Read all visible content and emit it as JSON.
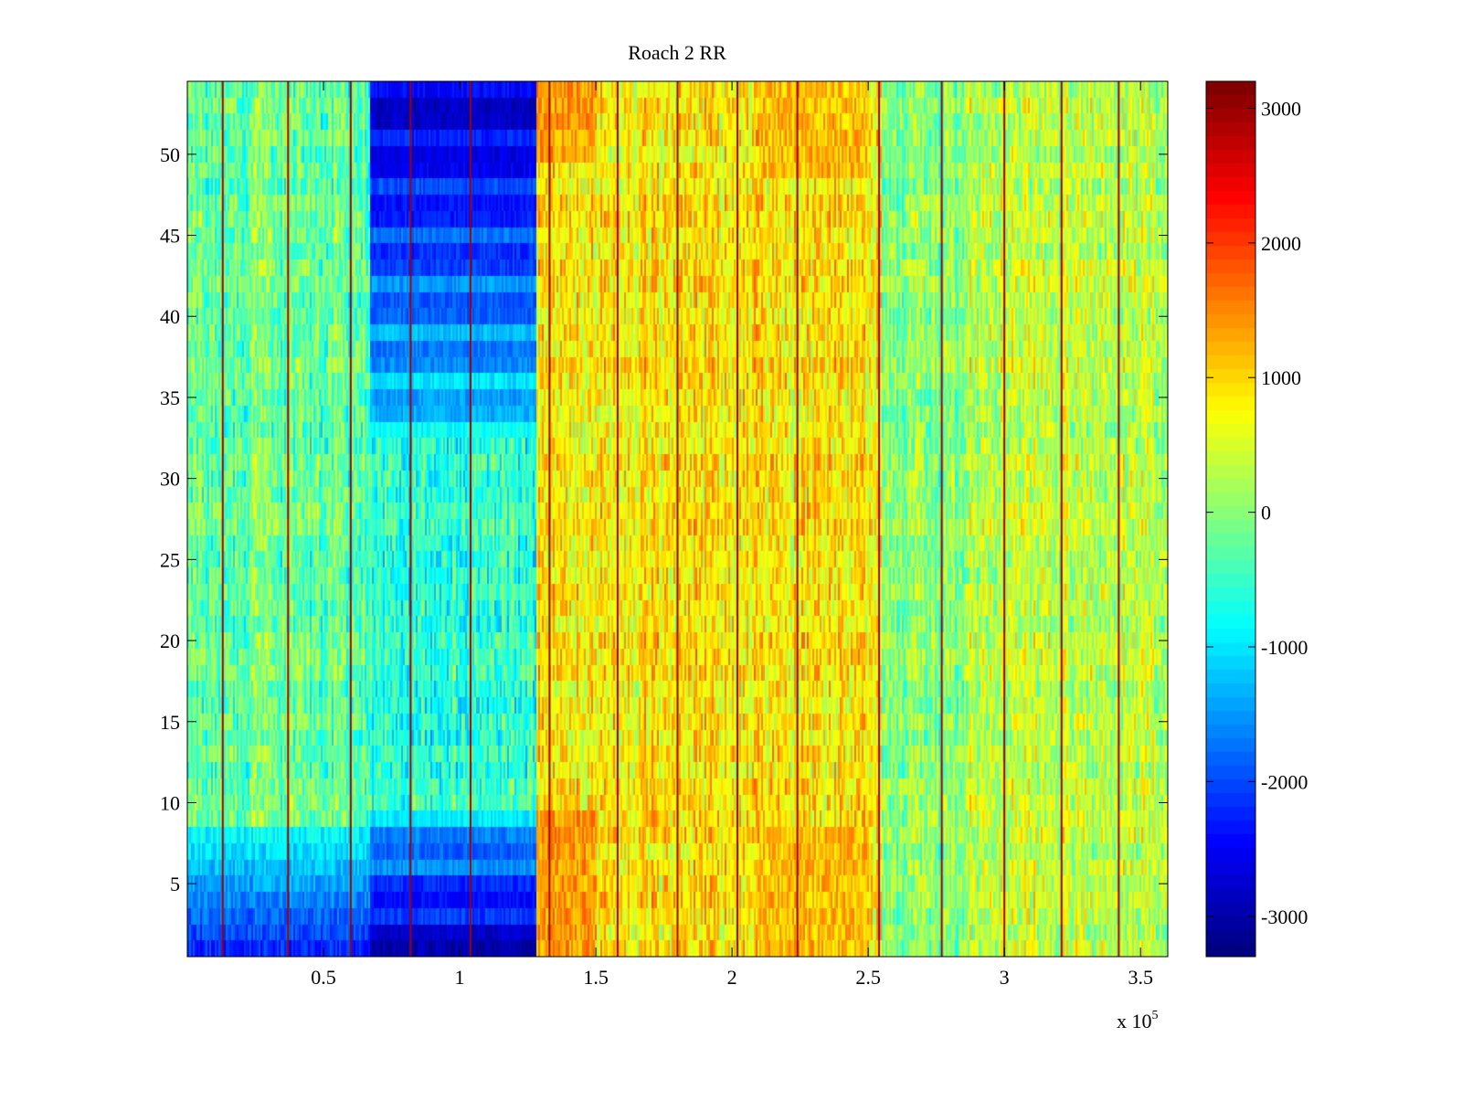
{
  "chart_data": {
    "type": "heatmap",
    "title": "Roach 2 RR",
    "xlabel": "",
    "ylabel": "",
    "x_exponent_label": {
      "base": "x 10",
      "exponent": "5"
    },
    "xlim": [
      0,
      3.6
    ],
    "ylim": [
      0.5,
      54.5
    ],
    "clim": [
      -3300,
      3200
    ],
    "colormap": "jet",
    "x_ticks": [
      {
        "value": 0.5,
        "label": "0.5"
      },
      {
        "value": 1.0,
        "label": "1"
      },
      {
        "value": 1.5,
        "label": "1.5"
      },
      {
        "value": 2.0,
        "label": "2"
      },
      {
        "value": 2.5,
        "label": "2.5"
      },
      {
        "value": 3.0,
        "label": "3"
      },
      {
        "value": 3.5,
        "label": "3.5"
      }
    ],
    "y_ticks": [
      {
        "value": 5,
        "label": "5"
      },
      {
        "value": 10,
        "label": "10"
      },
      {
        "value": 15,
        "label": "15"
      },
      {
        "value": 20,
        "label": "20"
      },
      {
        "value": 25,
        "label": "25"
      },
      {
        "value": 30,
        "label": "30"
      },
      {
        "value": 35,
        "label": "35"
      },
      {
        "value": 40,
        "label": "40"
      },
      {
        "value": 45,
        "label": "45"
      },
      {
        "value": 50,
        "label": "50"
      }
    ],
    "colorbar_ticks": [
      {
        "value": 3000,
        "label": "3000"
      },
      {
        "value": 2000,
        "label": "2000"
      },
      {
        "value": 1000,
        "label": "1000"
      },
      {
        "value": 0,
        "label": "0"
      },
      {
        "value": -1000,
        "label": "-1000"
      },
      {
        "value": -2000,
        "label": "-2000"
      },
      {
        "value": -3000,
        "label": "-3000"
      }
    ],
    "rows": 54,
    "columns_x_range": [
      0,
      3.6
    ],
    "baseline_segments": [
      {
        "x": [
          0.0,
          0.67
        ],
        "value": -250
      },
      {
        "x": [
          0.67,
          1.28
        ],
        "value": -600
      },
      {
        "x": [
          1.28,
          2.55
        ],
        "value": 850
      },
      {
        "x": [
          2.55,
          2.85
        ],
        "value": 0
      },
      {
        "x": [
          2.85,
          3.6
        ],
        "value": 350
      }
    ],
    "cold_block": {
      "x": [
        0.67,
        1.28
      ],
      "value_range": [
        -3200,
        -1300
      ],
      "rows_bottom": [
        1,
        9
      ],
      "rows_top": [
        33,
        54
      ]
    },
    "left_cool_block": {
      "x": [
        0.0,
        0.67
      ],
      "value_range": [
        -2500,
        -900
      ],
      "rows_bottom": [
        1,
        8
      ]
    },
    "warm_blocks": [
      {
        "x": [
          1.28,
          1.5
        ],
        "value": 1800,
        "rows_bottom": [
          1,
          9
        ],
        "rows_top": [
          50,
          54
        ]
      },
      {
        "x": [
          2.1,
          2.5
        ],
        "value": 1600,
        "rows_bottom": [
          1,
          8
        ],
        "rows_top": [
          49,
          54
        ]
      }
    ],
    "spike_lines_x": [
      0.13,
      0.37,
      0.6,
      0.82,
      1.04,
      1.33,
      1.58,
      1.8,
      2.02,
      2.24,
      2.54,
      2.77,
      3.0,
      3.21,
      3.42
    ],
    "spike_value": 3000,
    "noise_amplitude": 600
  }
}
